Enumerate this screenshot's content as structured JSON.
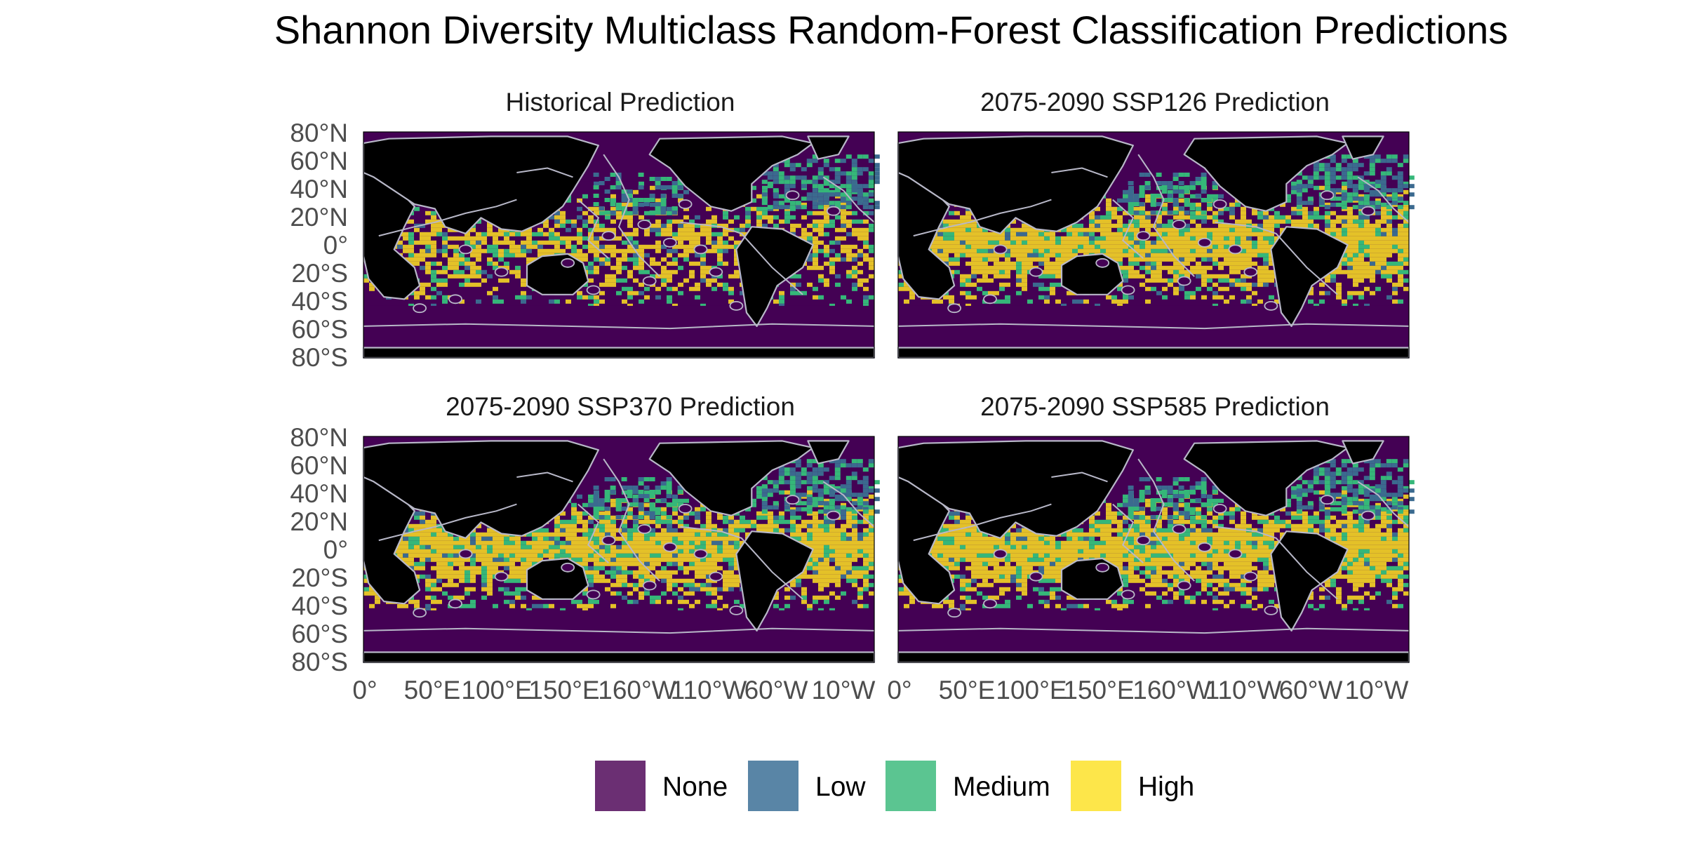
{
  "title": "Shannon Diversity Multiclass Random-Forest Classification Predictions",
  "colors": {
    "none": "#440154",
    "low": "#3b6a8f",
    "medium": "#35b779",
    "high": "#e4c128",
    "land": "#000000",
    "outline": "#b8b8c8",
    "legend_none": "#6b2f73",
    "legend_low": "#5985a6",
    "legend_medium": "#5bc591",
    "legend_high": "#fde64a",
    "axis_text": "#4d4d4d"
  },
  "legend": [
    {
      "key": "None",
      "label": "None",
      "color": "#6b2f73"
    },
    {
      "key": "Low",
      "label": "Low",
      "color": "#5985a6"
    },
    {
      "key": "Medium",
      "label": "Medium",
      "color": "#5bc591"
    },
    {
      "key": "High",
      "label": "High",
      "color": "#fde64a"
    }
  ],
  "y_ticks": [
    "80°N",
    "60°N",
    "40°N",
    "20°N",
    "0°",
    "20°S",
    "40°S",
    "60°S",
    "80°S"
  ],
  "x_ticks": [
    "0°",
    "50°E",
    "100°E",
    "150°E",
    "160°W",
    "110°W",
    "60°W",
    "10°W"
  ],
  "panels": [
    {
      "id": "historical",
      "title": "Historical Prediction",
      "scenario": "historical"
    },
    {
      "id": "ssp126",
      "title": "2075-2090 SSP126 Prediction",
      "scenario": "ssp126"
    },
    {
      "id": "ssp370",
      "title": "2075-2090 SSP370 Prediction",
      "scenario": "ssp370"
    },
    {
      "id": "ssp585",
      "title": "2075-2090 SSP585 Prediction",
      "scenario": "ssp585"
    }
  ]
}
